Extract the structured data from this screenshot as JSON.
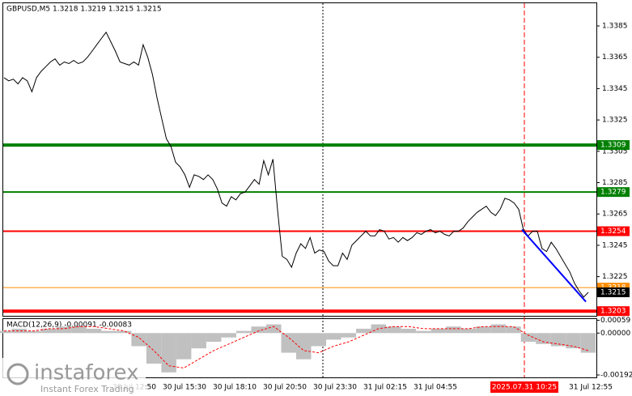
{
  "chart_data": [
    {
      "type": "line",
      "title": "GBPUSD,M5  1.3218 1.3219 1.3215 1.3215",
      "color": "#000000",
      "values": [
        1.3352,
        1.335,
        1.3351,
        1.3348,
        1.3352,
        1.335,
        1.3343,
        1.3352,
        1.3356,
        1.3359,
        1.3362,
        1.3364,
        1.336,
        1.3362,
        1.3361,
        1.3363,
        1.3361,
        1.3362,
        1.3365,
        1.3369,
        1.3373,
        1.3377,
        1.3381,
        1.3375,
        1.3369,
        1.3362,
        1.3361,
        1.336,
        1.3362,
        1.336,
        1.3373,
        1.3365,
        1.3354,
        1.3339,
        1.3326,
        1.3313,
        1.3308,
        1.3298,
        1.3295,
        1.329,
        1.3282,
        1.329,
        1.3289,
        1.3287,
        1.329,
        1.3287,
        1.3281,
        1.3272,
        1.327,
        1.3276,
        1.3274,
        1.3278,
        1.3279,
        1.3283,
        1.3287,
        1.3284,
        1.3299,
        1.329,
        1.33,
        1.3267,
        1.3238,
        1.3236,
        1.3231,
        1.324,
        1.3246,
        1.3243,
        1.325,
        1.324,
        1.3242,
        1.3241,
        1.3235,
        1.3232,
        1.3232,
        1.324,
        1.3236,
        1.3245,
        1.3248,
        1.3251,
        1.3254,
        1.3251,
        1.3251,
        1.3255,
        1.3254,
        1.3249,
        1.325,
        1.3247,
        1.325,
        1.3248,
        1.325,
        1.3253,
        1.3252,
        1.3254,
        1.3255,
        1.3253,
        1.3254,
        1.3252,
        1.3251,
        1.3254,
        1.3254,
        1.3256,
        1.326,
        1.3263,
        1.3266,
        1.3268,
        1.327,
        1.3266,
        1.3264,
        1.3268,
        1.3275,
        1.3274,
        1.3272,
        1.3268,
        1.3255,
        1.3251,
        1.3254,
        1.3254,
        1.3243,
        1.3241,
        1.3247,
        1.3243,
        1.3238,
        1.3233,
        1.3228,
        1.3221,
        1.3216,
        1.3212,
        1.3215
      ],
      "ylim": [
        1.32,
        1.34
      ],
      "yticks": [
        1.3225,
        1.3245,
        1.3265,
        1.3285,
        1.3305,
        1.3325,
        1.3345,
        1.3365,
        1.3385
      ],
      "levels": [
        {
          "value": 1.3309,
          "color": "#008000"
        },
        {
          "value": 1.3279,
          "color": "#008000"
        },
        {
          "value": 1.3254,
          "color": "#ff0000"
        },
        {
          "value": 1.3203,
          "color": "#ff0000"
        },
        {
          "value": 1.3218,
          "color": "#ff8c00"
        }
      ],
      "bid": 1.3215,
      "trendline": {
        "from": 1.3255,
        "to": 1.3209,
        "color": "#0000ff"
      },
      "x_labels": [
        "30 Jul 12:50",
        "30 Jul 15:30",
        "30 Jul 18:10",
        "30 Jul 20:50",
        "30 Jul 23:30",
        "31 Jul 02:15",
        "31 Jul 04:55"
      ],
      "x_label_last": "31 Jul 12:55",
      "cursor_label": "2025.07.31 10:25"
    },
    {
      "type": "macd",
      "title": "MACD(12,26,9) -0.00091 -0.00083",
      "values": [
        0.0001,
        0.0002,
        0.0001,
        0.0002,
        0.0003,
        0.0003,
        0.0002,
        0.0001,
        0.0001,
        -0.0006,
        -0.0014,
        -0.0018,
        -0.0012,
        -0.0007,
        -0.0004,
        -0.0002,
        0.0001,
        0.0003,
        0.0004,
        -0.0009,
        -0.0012,
        -0.0006,
        -0.0003,
        -0.0002,
        0.0002,
        0.0004,
        0.0003,
        0.0002,
        0.0001,
        0.0002,
        0.0003,
        0.0002,
        0.0003,
        0.0004,
        0.0003,
        -0.0004,
        -0.0005,
        -0.0006,
        -0.0007,
        -0.0009
      ],
      "signal": [
        0.0001,
        0.0001,
        0.0001,
        0.0002,
        0.0002,
        0.0003,
        0.0003,
        0.0002,
        0.0001,
        -0.0002,
        -0.0008,
        -0.0015,
        -0.0016,
        -0.0012,
        -0.0008,
        -0.0005,
        -0.0002,
        0.0001,
        0.0003,
        -0.0002,
        -0.0008,
        -0.0009,
        -0.0006,
        -0.0004,
        -0.0001,
        0.0002,
        0.0003,
        0.0003,
        0.0002,
        0.0002,
        0.0002,
        0.0002,
        0.0003,
        0.0003,
        0.0003,
        -0.0001,
        -0.0004,
        -0.0005,
        -0.0006,
        -0.0008
      ],
      "color": "#c0c0c0",
      "signal_color": "#ff0000",
      "ylim": [
        -0.00203,
        0.00068
      ],
      "yticks": [
        0.00059,
        {
          "value": 0,
          "label": "0.00000"
        },
        -0.00192
      ]
    }
  ],
  "watermark": {
    "brand": "instaforex",
    "tagline": "Instant Forex Trading"
  }
}
